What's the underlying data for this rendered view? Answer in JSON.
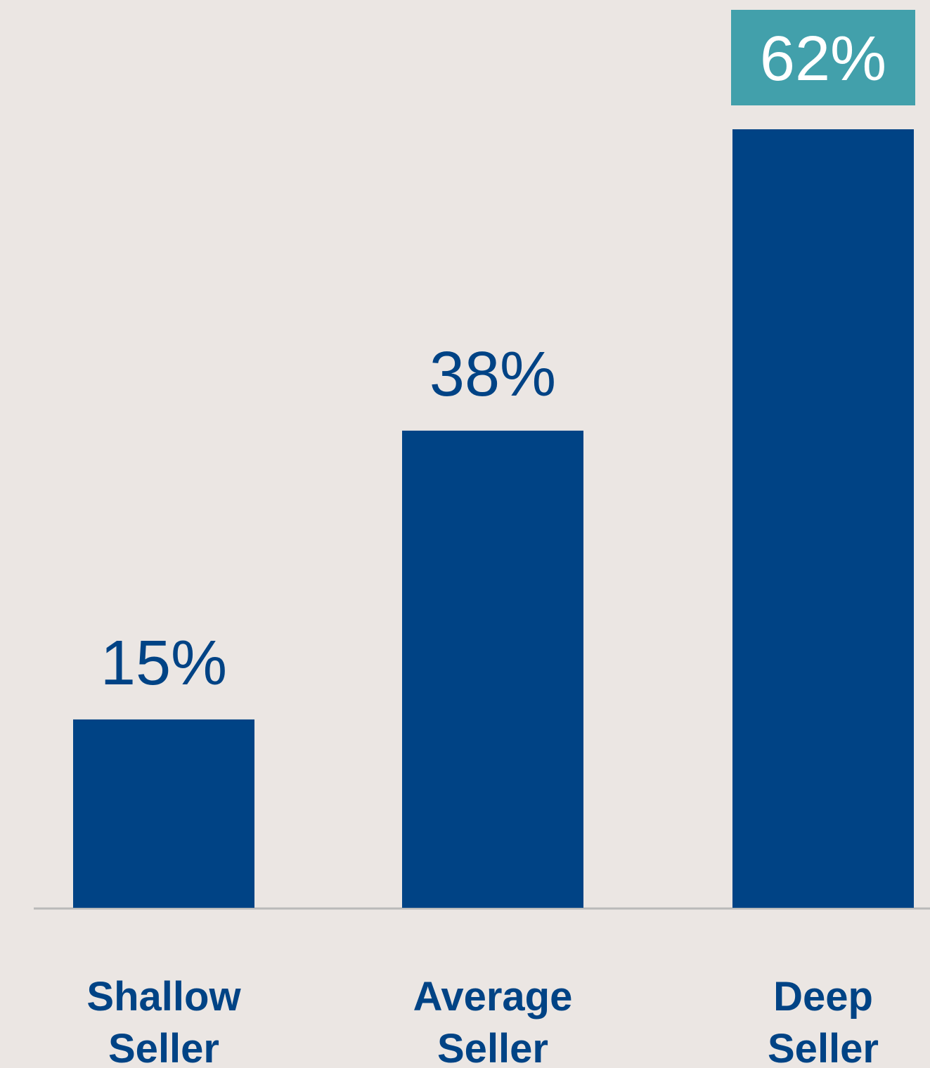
{
  "chart_data": {
    "type": "bar",
    "categories": [
      [
        "Shallow",
        "Seller"
      ],
      [
        "Average",
        "Seller"
      ],
      [
        "Deep",
        "Seller"
      ]
    ],
    "values": [
      15,
      38,
      62
    ],
    "value_labels": [
      "15%",
      "38%",
      "62%"
    ],
    "highlighted_index": 2,
    "ylim": [
      0,
      62
    ],
    "grid": false,
    "legend": "none",
    "title": "",
    "xlabel": "",
    "ylabel": ""
  },
  "colors": {
    "background": "#ebe6e3",
    "bar": "#004385",
    "label_text": "#004385",
    "highlight_box": "#42a0ab",
    "highlight_text": "#ffffff",
    "baseline": "#b9b9b9"
  }
}
